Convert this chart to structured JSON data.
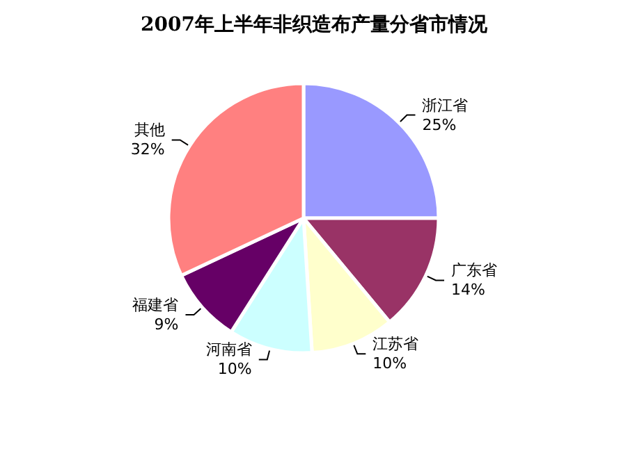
{
  "chart_data": {
    "type": "pie",
    "title": "2007年上半年非织造布产量分省市情况",
    "categories": [
      "浙江省",
      "广东省",
      "江苏省",
      "河南省",
      "福建省",
      "其他"
    ],
    "values": [
      25,
      14,
      10,
      10,
      9,
      32
    ],
    "value_labels": [
      "25%",
      "14%",
      "10%",
      "10%",
      "9%",
      "32%"
    ],
    "colors": [
      "#9999ff",
      "#993366",
      "#ffffcc",
      "#ccffff",
      "#660066",
      "#ff8080"
    ],
    "legend": false
  }
}
